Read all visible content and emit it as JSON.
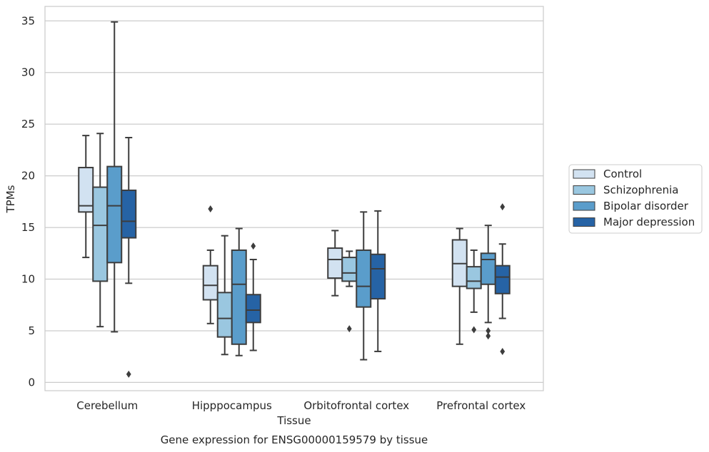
{
  "chart_data": {
    "type": "box",
    "title": "",
    "caption": "Gene expression for ENSG00000159579 by tissue",
    "xlabel": "Tissue",
    "ylabel": "TPMs",
    "ylim": [
      -0.8,
      36.4
    ],
    "yticks": [
      0,
      5,
      10,
      15,
      20,
      25,
      30,
      35
    ],
    "grid": "horizontal",
    "legend_position": "right",
    "categories": [
      "Cerebellum",
      "Hipppocampus",
      "Orbitofrontal cortex",
      "Prefrontal cortex"
    ],
    "series": [
      {
        "name": "Control",
        "color": "#d2e2f1",
        "boxes": [
          {
            "whisker_low": 12.1,
            "q1": 16.5,
            "median": 17.1,
            "q3": 20.8,
            "whisker_high": 23.9,
            "outliers": []
          },
          {
            "whisker_low": 5.7,
            "q1": 8.0,
            "median": 9.4,
            "q3": 11.3,
            "whisker_high": 12.8,
            "outliers": [
              16.8
            ]
          },
          {
            "whisker_low": 8.4,
            "q1": 10.1,
            "median": 11.9,
            "q3": 13.0,
            "whisker_high": 14.7,
            "outliers": []
          },
          {
            "whisker_low": 3.7,
            "q1": 9.3,
            "median": 11.5,
            "q3": 13.8,
            "whisker_high": 14.9,
            "outliers": []
          }
        ]
      },
      {
        "name": "Schizophrenia",
        "color": "#9ac7e0",
        "boxes": [
          {
            "whisker_low": 5.4,
            "q1": 9.8,
            "median": 15.2,
            "q3": 18.9,
            "whisker_high": 24.1,
            "outliers": []
          },
          {
            "whisker_low": 2.7,
            "q1": 4.4,
            "median": 6.2,
            "q3": 8.7,
            "whisker_high": 14.2,
            "outliers": []
          },
          {
            "whisker_low": 9.3,
            "q1": 9.8,
            "median": 10.6,
            "q3": 12.1,
            "whisker_high": 12.7,
            "outliers": [
              5.2
            ]
          },
          {
            "whisker_low": 6.8,
            "q1": 9.1,
            "median": 9.8,
            "q3": 11.2,
            "whisker_high": 12.8,
            "outliers": [
              5.1
            ]
          }
        ]
      },
      {
        "name": "Bipolar disorder",
        "color": "#5a9dcb",
        "boxes": [
          {
            "whisker_low": 4.9,
            "q1": 11.6,
            "median": 17.1,
            "q3": 20.9,
            "whisker_high": 34.9,
            "outliers": []
          },
          {
            "whisker_low": 2.6,
            "q1": 3.7,
            "median": 9.5,
            "q3": 12.8,
            "whisker_high": 14.9,
            "outliers": []
          },
          {
            "whisker_low": 2.2,
            "q1": 7.3,
            "median": 9.3,
            "q3": 12.8,
            "whisker_high": 16.5,
            "outliers": []
          },
          {
            "whisker_low": 5.8,
            "q1": 9.5,
            "median": 11.9,
            "q3": 12.5,
            "whisker_high": 15.2,
            "outliers": [
              5.0,
              4.5
            ]
          }
        ]
      },
      {
        "name": "Major depression",
        "color": "#2663a5",
        "boxes": [
          {
            "whisker_low": 9.6,
            "q1": 14.0,
            "median": 15.6,
            "q3": 18.6,
            "whisker_high": 23.7,
            "outliers": [
              0.8
            ]
          },
          {
            "whisker_low": 3.1,
            "q1": 5.8,
            "median": 7.0,
            "q3": 8.5,
            "whisker_high": 11.9,
            "outliers": [
              13.2
            ]
          },
          {
            "whisker_low": 3.0,
            "q1": 8.1,
            "median": 11.0,
            "q3": 12.4,
            "whisker_high": 16.6,
            "outliers": []
          },
          {
            "whisker_low": 6.2,
            "q1": 8.6,
            "median": 10.2,
            "q3": 11.3,
            "whisker_high": 13.4,
            "outliers": [
              17.0,
              3.0
            ]
          }
        ]
      }
    ]
  }
}
